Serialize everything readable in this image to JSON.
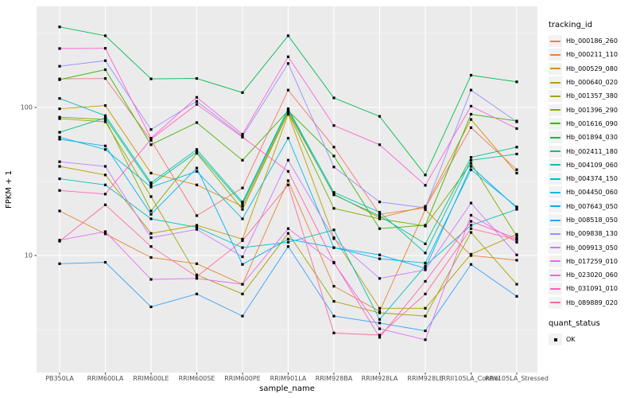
{
  "figure": {
    "background": "#FFFFFF",
    "panel_background": "#EBEBEB",
    "grid_color": "#FFFFFF",
    "axis_text_color": "#4D4D4D",
    "tick_color": "#333333",
    "point_color": "#000000"
  },
  "axes": {
    "x_title": "sample_name",
    "y_title": "FPKM + 1",
    "y_tick_labels": [
      "100",
      "10"
    ]
  },
  "legend": {
    "tracking_title": "tracking_id",
    "quant_title": "quant_status",
    "quant_items": [
      {
        "label": "OK",
        "shape": "filled-square",
        "color": "#000000"
      }
    ]
  },
  "chart_data": {
    "type": "line",
    "title": "",
    "xlabel": "sample_name",
    "ylabel": "FPKM + 1",
    "y_scale": "log10",
    "ylim": [
      1.6,
      480
    ],
    "y_major_gridlines": [
      10,
      100
    ],
    "y_minor_gridlines": [
      3.162,
      31.62,
      316.2
    ],
    "grid": "on",
    "legend_position": "right",
    "point_shape": "filled-square",
    "categories": [
      "PB350LA",
      "RRIM600LA",
      "RRIM600LE",
      "RRIM600SE",
      "RRIM600PE",
      "RRIM901LA",
      "RRIM928BA",
      "RRIM928LA",
      "RRIM928LE",
      "RRII105LA_Control",
      "RRII105LA_Stressed"
    ],
    "series": [
      {
        "name": "Hb_000186_260",
        "color": "#F8766D",
        "values": [
          156,
          157,
          60,
          18.6,
          28.6,
          131,
          54,
          19,
          21,
          73,
          38
        ]
      },
      {
        "name": "Hb_000211_110",
        "color": "#EA8331",
        "values": [
          20,
          14,
          9.7,
          8.8,
          6.4,
          32,
          6.2,
          4.2,
          20.4,
          10,
          9.3
        ]
      },
      {
        "name": "Hb_000529_080",
        "color": "#D89000",
        "values": [
          98,
          103,
          36,
          30,
          21.5,
          93,
          26,
          18,
          21.5,
          83,
          36
        ]
      },
      {
        "name": "Hb_000640_020",
        "color": "#C09B00",
        "values": [
          40,
          35,
          14.1,
          16,
          12.9,
          90,
          13.2,
          4.4,
          4.4,
          10.2,
          13.9
        ]
      },
      {
        "name": "Hb_001357_380",
        "color": "#A3A500",
        "values": [
          84,
          80,
          25,
          7.4,
          5.5,
          14.1,
          4.9,
          4.1,
          3.9,
          14.3,
          6.4
        ]
      },
      {
        "name": "Hb_001396_290",
        "color": "#7CAE00",
        "values": [
          86,
          83,
          20,
          49,
          20.5,
          92,
          20.8,
          17.7,
          15.8,
          42,
          13.5
        ]
      },
      {
        "name": "Hb_001616_090",
        "color": "#39B600",
        "values": [
          154,
          180,
          56,
          79,
          44,
          95,
          47,
          15.2,
          16,
          90,
          81
        ]
      },
      {
        "name": "Hb_001894_030",
        "color": "#00BB4E",
        "values": [
          350,
          305,
          156,
          157,
          126,
          305,
          116,
          87,
          35,
          165,
          149
        ]
      },
      {
        "name": "Hb_002411_180",
        "color": "#00C087",
        "values": [
          68,
          85,
          30,
          50,
          22.4,
          96,
          25.7,
          18.5,
          12,
          46,
          54
        ]
      },
      {
        "name": "Hb_004109_060",
        "color": "#00C1AB",
        "values": [
          115,
          88,
          31,
          52,
          23,
          98,
          26.7,
          19.6,
          10.4,
          44,
          48.5
        ]
      },
      {
        "name": "Hb_004374_150",
        "color": "#00BFC4",
        "values": [
          33,
          30,
          17.7,
          15.5,
          11.3,
          12.3,
          14.9,
          3.7,
          8.5,
          16,
          20.5
        ]
      },
      {
        "name": "Hb_004450_060",
        "color": "#00BAE0",
        "values": [
          63,
          52,
          29,
          37,
          17.7,
          62,
          11.3,
          9.5,
          8.9,
          38,
          21.3
        ]
      },
      {
        "name": "Hb_007643_050",
        "color": "#00B0F6",
        "values": [
          61,
          55,
          19,
          39,
          8.7,
          12.9,
          11.3,
          10.1,
          8.2,
          40,
          21
        ]
      },
      {
        "name": "Hb_008518_050",
        "color": "#35A2FF",
        "values": [
          8.8,
          9,
          4.5,
          5.5,
          3.9,
          11.5,
          3.9,
          3.5,
          3.1,
          8.7,
          5.3
        ]
      },
      {
        "name": "Hb_009838_130",
        "color": "#9590FF",
        "values": [
          190,
          207,
          71,
          110,
          64,
          198,
          39.6,
          23,
          21,
          131,
          80
        ]
      },
      {
        "name": "Hb_009913_050",
        "color": "#C77CFF",
        "values": [
          43,
          40,
          13.2,
          15,
          9.8,
          44,
          13,
          7,
          8,
          22.6,
          10.1
        ]
      },
      {
        "name": "Hb_017259_010",
        "color": "#E76BF3",
        "values": [
          12.7,
          14.5,
          6.9,
          7,
          6.4,
          15.2,
          8.9,
          3.2,
          2.7,
          18.7,
          12.3
        ]
      },
      {
        "name": "Hb_023020_060",
        "color": "#FA62DB",
        "values": [
          250,
          251,
          62,
          117,
          66,
          220,
          75.5,
          56,
          29.8,
          102,
          72
        ]
      },
      {
        "name": "Hb_031091_010",
        "color": "#FF62BC",
        "values": [
          27.5,
          26,
          61,
          105,
          63,
          37,
          9,
          2.8,
          6.7,
          17,
          13
        ]
      },
      {
        "name": "Hb_089889_020",
        "color": "#FF6A98",
        "values": [
          12.5,
          22,
          11.5,
          7.2,
          12.6,
          30,
          3,
          2.9,
          5.5,
          15.2,
          12.8
        ]
      }
    ]
  }
}
